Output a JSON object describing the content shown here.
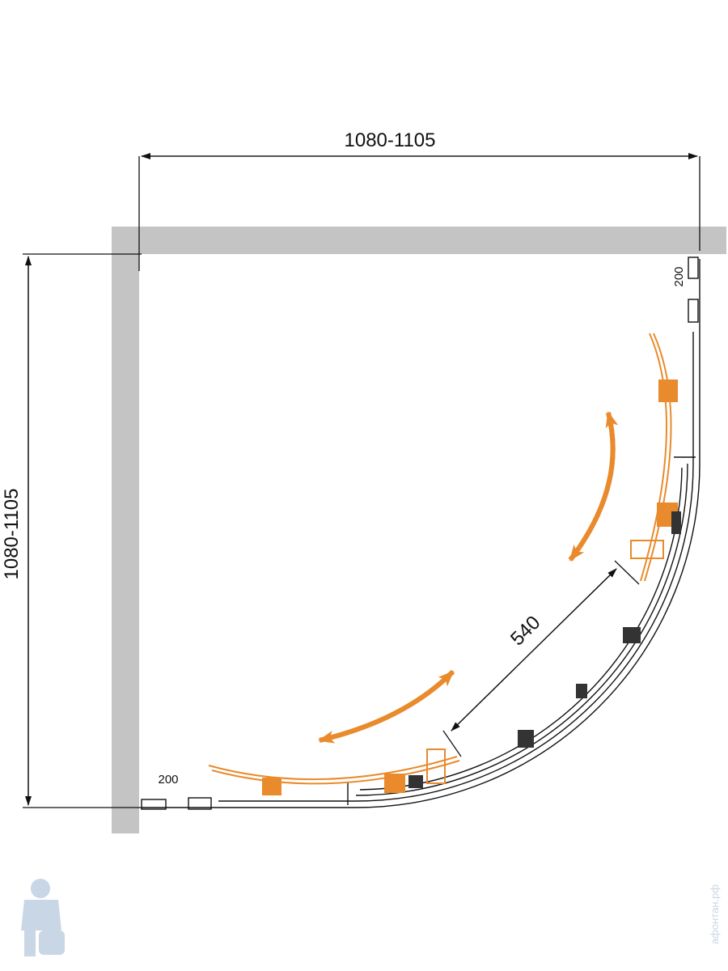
{
  "dimensions": {
    "width": "1080-1105",
    "depth": "1080-1105",
    "door_width": "540",
    "top_profile": "200",
    "bottom_profile": "200"
  },
  "watermark": "афонтан.рф"
}
